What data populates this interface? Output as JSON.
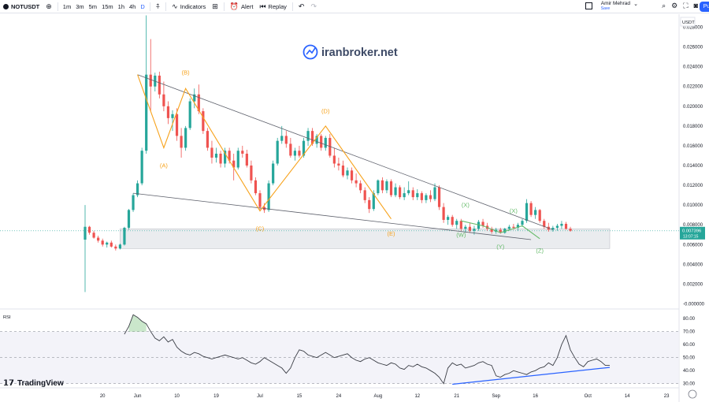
{
  "toolbar": {
    "symbol": "NOTUSDT",
    "timeframes": [
      "1m",
      "3m",
      "5m",
      "15m",
      "1h",
      "4h",
      "D"
    ],
    "active_timeframe": "D",
    "indicators_label": "Indicators",
    "alert_label": "Alert",
    "replay_label": "Replay",
    "user_name": "Amir Mehrad",
    "user_sub": "Save",
    "publish_label": "Pu"
  },
  "watermark": "iranbroker.net",
  "brand": "TradingView",
  "currency": "USDT",
  "price_badge": {
    "value": "0.007396",
    "countdown": "13:07:15"
  },
  "rsi_label": "RSI",
  "chart_data": [
    {
      "type": "candlestick",
      "title": "NOTUSDT",
      "ylabel": "",
      "ylim": [
        -0.0002,
        0.029
      ],
      "y_ticks": [
        "0.028000",
        "0.026000",
        "0.024000",
        "0.022000",
        "0.020000",
        "0.018000",
        "0.016000",
        "0.014000",
        "0.012000",
        "0.010000",
        "0.008000",
        "0.006000",
        "0.004000",
        "0.002000",
        "-0.000000"
      ],
      "y_tick_values": [
        0.028,
        0.026,
        0.024,
        0.022,
        0.02,
        0.018,
        0.016,
        0.014,
        0.012,
        0.01,
        0.008,
        0.006,
        0.004,
        0.002,
        0
      ],
      "x_ticks": [
        "20",
        "Jun",
        "10",
        "19",
        "Jul",
        "15",
        "24",
        "Aug",
        "12",
        "21",
        "Sep",
        "16",
        "Oct",
        "14",
        "23"
      ],
      "x_tick_index": [
        4,
        12,
        21,
        30,
        40,
        49,
        58,
        67,
        76,
        85,
        94,
        103,
        115,
        124,
        133
      ],
      "first_candle_index": 0,
      "ohlc": [
        [
          0.0065,
          0.01,
          0.0012,
          0.0078
        ],
        [
          0.0078,
          0.0079,
          0.007,
          0.0072
        ],
        [
          0.0072,
          0.0074,
          0.0066,
          0.0067
        ],
        [
          0.0067,
          0.0069,
          0.0062,
          0.0064
        ],
        [
          0.0064,
          0.0066,
          0.0058,
          0.006
        ],
        [
          0.006,
          0.0063,
          0.0057,
          0.0062
        ],
        [
          0.0062,
          0.0064,
          0.0057,
          0.0058
        ],
        [
          0.0058,
          0.006,
          0.0054,
          0.0056
        ],
        [
          0.0056,
          0.0061,
          0.0055,
          0.006
        ],
        [
          0.006,
          0.0078,
          0.0059,
          0.0077
        ],
        [
          0.0077,
          0.0096,
          0.0075,
          0.0095
        ],
        [
          0.0095,
          0.0112,
          0.0093,
          0.011
        ],
        [
          0.011,
          0.0125,
          0.0108,
          0.0122
        ],
        [
          0.0122,
          0.0158,
          0.012,
          0.0155
        ],
        [
          0.0155,
          0.0292,
          0.0152,
          0.0232
        ],
        [
          0.0232,
          0.0268,
          0.0195,
          0.022
        ],
        [
          0.022,
          0.0234,
          0.0215,
          0.0231
        ],
        [
          0.0231,
          0.0235,
          0.0208,
          0.0212
        ],
        [
          0.0212,
          0.0225,
          0.0195,
          0.02
        ],
        [
          0.02,
          0.0205,
          0.0182,
          0.0188
        ],
        [
          0.0188,
          0.0196,
          0.0175,
          0.0192
        ],
        [
          0.0192,
          0.0198,
          0.0165,
          0.017
        ],
        [
          0.017,
          0.0178,
          0.0148,
          0.0158
        ],
        [
          0.0158,
          0.018,
          0.0155,
          0.0178
        ],
        [
          0.0178,
          0.0208,
          0.0176,
          0.0205
        ],
        [
          0.0205,
          0.0218,
          0.0198,
          0.0212
        ],
        [
          0.0212,
          0.0222,
          0.0192,
          0.0195
        ],
        [
          0.0195,
          0.0198,
          0.0172,
          0.0175
        ],
        [
          0.0175,
          0.0178,
          0.0155,
          0.0158
        ],
        [
          0.0158,
          0.0165,
          0.0142,
          0.0148
        ],
        [
          0.0148,
          0.0158,
          0.0143,
          0.0152
        ],
        [
          0.0152,
          0.0155,
          0.0138,
          0.0142
        ],
        [
          0.0142,
          0.0158,
          0.0138,
          0.0155
        ],
        [
          0.0155,
          0.0158,
          0.0142,
          0.0145
        ],
        [
          0.0145,
          0.0152,
          0.0125,
          0.0138
        ],
        [
          0.0138,
          0.0158,
          0.0136,
          0.0155
        ],
        [
          0.0155,
          0.016,
          0.0148,
          0.0152
        ],
        [
          0.0152,
          0.0156,
          0.0138,
          0.014
        ],
        [
          0.014,
          0.0145,
          0.0122,
          0.0125
        ],
        [
          0.0125,
          0.0128,
          0.011,
          0.0112
        ],
        [
          0.0112,
          0.0115,
          0.0095,
          0.0098
        ],
        [
          0.0098,
          0.0102,
          0.0092,
          0.0095
        ],
        [
          0.0095,
          0.0125,
          0.0093,
          0.0122
        ],
        [
          0.0122,
          0.0145,
          0.012,
          0.0142
        ],
        [
          0.0142,
          0.0168,
          0.014,
          0.0165
        ],
        [
          0.0165,
          0.018,
          0.0162,
          0.017
        ],
        [
          0.017,
          0.0175,
          0.0158,
          0.0162
        ],
        [
          0.0162,
          0.0168,
          0.0148,
          0.015
        ],
        [
          0.015,
          0.0158,
          0.0145,
          0.0155
        ],
        [
          0.0155,
          0.016,
          0.0148,
          0.015
        ],
        [
          0.015,
          0.0168,
          0.0148,
          0.0165
        ],
        [
          0.0165,
          0.0178,
          0.016,
          0.0175
        ],
        [
          0.0175,
          0.0178,
          0.016,
          0.0162
        ],
        [
          0.0162,
          0.0172,
          0.0158,
          0.017
        ],
        [
          0.017,
          0.0172,
          0.0155,
          0.0158
        ],
        [
          0.0158,
          0.017,
          0.0155,
          0.0168
        ],
        [
          0.0168,
          0.0172,
          0.0148,
          0.015
        ],
        [
          0.015,
          0.0158,
          0.0138,
          0.0142
        ],
        [
          0.0142,
          0.0148,
          0.0135,
          0.014
        ],
        [
          0.014,
          0.0145,
          0.0128,
          0.013
        ],
        [
          0.013,
          0.0138,
          0.0126,
          0.0135
        ],
        [
          0.0135,
          0.0138,
          0.0122,
          0.0125
        ],
        [
          0.0125,
          0.0132,
          0.0118,
          0.0122
        ],
        [
          0.0122,
          0.0125,
          0.0112,
          0.0115
        ],
        [
          0.0115,
          0.0118,
          0.0102,
          0.0105
        ],
        [
          0.0105,
          0.0108,
          0.0092,
          0.0096
        ],
        [
          0.0096,
          0.0115,
          0.0094,
          0.0112
        ],
        [
          0.0112,
          0.0126,
          0.011,
          0.0125
        ],
        [
          0.0125,
          0.0128,
          0.0112,
          0.0115
        ],
        [
          0.0115,
          0.0126,
          0.0112,
          0.0124
        ],
        [
          0.0124,
          0.0126,
          0.0108,
          0.011
        ],
        [
          0.011,
          0.0122,
          0.0108,
          0.0118
        ],
        [
          0.0118,
          0.012,
          0.0106,
          0.0108
        ],
        [
          0.0108,
          0.0118,
          0.0105,
          0.0112
        ],
        [
          0.0112,
          0.0124,
          0.011,
          0.0115
        ],
        [
          0.0115,
          0.0118,
          0.0105,
          0.0108
        ],
        [
          0.0108,
          0.0116,
          0.0105,
          0.0112
        ],
        [
          0.0112,
          0.0114,
          0.0102,
          0.0105
        ],
        [
          0.0105,
          0.0112,
          0.0102,
          0.011
        ],
        [
          0.011,
          0.0115,
          0.0103,
          0.0106
        ],
        [
          0.0106,
          0.0122,
          0.0104,
          0.0118
        ],
        [
          0.0118,
          0.012,
          0.0095,
          0.0098
        ],
        [
          0.0098,
          0.0102,
          0.0082,
          0.0085
        ],
        [
          0.0085,
          0.009,
          0.008,
          0.0088
        ],
        [
          0.0088,
          0.009,
          0.0078,
          0.008
        ],
        [
          0.008,
          0.0086,
          0.0076,
          0.0084
        ],
        [
          0.0084,
          0.0086,
          0.0074,
          0.0076
        ],
        [
          0.0076,
          0.008,
          0.0072,
          0.0078
        ],
        [
          0.0078,
          0.0082,
          0.0072,
          0.0074
        ],
        [
          0.0074,
          0.0079,
          0.007,
          0.0076
        ],
        [
          0.0076,
          0.0085,
          0.0074,
          0.0083
        ],
        [
          0.0083,
          0.0086,
          0.0077,
          0.0079
        ],
        [
          0.0079,
          0.0082,
          0.0074,
          0.0076
        ],
        [
          0.0076,
          0.0078,
          0.0071,
          0.0073
        ],
        [
          0.0073,
          0.0077,
          0.0071,
          0.0075
        ],
        [
          0.0075,
          0.0077,
          0.0071,
          0.0072
        ],
        [
          0.0072,
          0.0077,
          0.0071,
          0.0076
        ],
        [
          0.0076,
          0.008,
          0.0074,
          0.0078
        ],
        [
          0.0078,
          0.0081,
          0.0075,
          0.0077
        ],
        [
          0.0077,
          0.0082,
          0.0074,
          0.008
        ],
        [
          0.008,
          0.0086,
          0.0078,
          0.0084
        ],
        [
          0.0084,
          0.0106,
          0.0082,
          0.0102
        ],
        [
          0.0102,
          0.0104,
          0.0088,
          0.009
        ],
        [
          0.009,
          0.0098,
          0.0086,
          0.0095
        ],
        [
          0.0095,
          0.0096,
          0.0082,
          0.0084
        ],
        [
          0.0084,
          0.0086,
          0.0076,
          0.0078
        ],
        [
          0.0078,
          0.0082,
          0.0073,
          0.0075
        ],
        [
          0.0075,
          0.0079,
          0.0073,
          0.0077
        ],
        [
          0.0077,
          0.0081,
          0.0074,
          0.0079
        ],
        [
          0.0079,
          0.0084,
          0.0076,
          0.0081
        ],
        [
          0.0081,
          0.0083,
          0.0075,
          0.0076
        ],
        [
          0.0076,
          0.0078,
          0.0073,
          0.0074
        ]
      ],
      "colors": {
        "up": "#26a69a",
        "down": "#ef5350",
        "wave": "#f7a21b",
        "wave_alt": "#66bb6a",
        "trendline": "#5d606b",
        "rsi": "#3a3d45",
        "rsi_trend": "#2962ff"
      },
      "trendlines": [
        {
          "from": [
            12,
            0.0232
          ],
          "to": [
            107,
            0.0075
          ]
        },
        {
          "from": [
            11,
            0.0112
          ],
          "to": [
            102,
            0.0065
          ]
        }
      ],
      "waves": [
        {
          "points": [
            [
              12,
              0.0232
            ],
            [
              18,
              0.0158
            ],
            [
              23,
              0.0218
            ],
            [
              40,
              0.0094
            ],
            [
              55,
              0.018
            ],
            [
              70,
              0.0086
            ]
          ],
          "color": "#f7a21b"
        },
        {
          "points": [
            [
              86,
              0.0084
            ],
            [
              91,
              0.0079
            ],
            [
              95,
              0.0072
            ],
            [
              100,
              0.0079
            ],
            [
              104,
              0.0066
            ]
          ],
          "color": "#66bb6a"
        }
      ],
      "wave_labels": [
        {
          "text": "(A)",
          "i": 18,
          "y": 0.0138,
          "color": "#f7a21b"
        },
        {
          "text": "(B)",
          "i": 23,
          "y": 0.0232,
          "color": "#f7a21b"
        },
        {
          "text": "(C)",
          "i": 40,
          "y": 0.0074,
          "color": "#f7a21b"
        },
        {
          "text": "(D)",
          "i": 55,
          "y": 0.0193,
          "color": "#f7a21b"
        },
        {
          "text": "(E)",
          "i": 70,
          "y": 0.0069,
          "color": "#f7a21b"
        },
        {
          "text": "(W)",
          "i": 86,
          "y": 0.0068,
          "color": "#66bb6a"
        },
        {
          "text": "(X)",
          "i": 87,
          "y": 0.0098,
          "color": "#66bb6a"
        },
        {
          "text": "(Y)",
          "i": 95,
          "y": 0.0056,
          "color": "#66bb6a"
        },
        {
          "text": "(X)",
          "i": 98,
          "y": 0.0092,
          "color": "#66bb6a"
        },
        {
          "text": "(Z)",
          "i": 104,
          "y": 0.0052,
          "color": "#66bb6a"
        }
      ],
      "zone": {
        "from_index": 8,
        "to_index": 120,
        "y_top": 0.0076,
        "y_bottom": 0.0056
      },
      "last_price": 0.007396
    },
    {
      "type": "line",
      "title": "RSI",
      "ylim": [
        28,
        85
      ],
      "y_ticks": [
        "80.00",
        "70.00",
        "60.00",
        "50.00",
        "40.00",
        "30.00"
      ],
      "y_tick_values": [
        80,
        70,
        60,
        50,
        40,
        30
      ],
      "levels": [
        70,
        50,
        30
      ],
      "values": [
        68,
        74,
        83,
        81,
        78,
        76,
        70,
        65,
        63,
        66,
        62,
        64,
        58,
        55,
        53,
        52,
        54,
        53,
        51,
        50,
        49,
        50,
        51,
        52,
        51,
        50,
        49,
        50,
        48,
        46,
        45,
        47,
        50,
        48,
        46,
        44,
        42,
        38,
        42,
        50,
        56,
        55,
        52,
        51,
        50,
        52,
        54,
        52,
        50,
        51,
        52,
        53,
        50,
        48,
        47,
        49,
        50,
        48,
        46,
        45,
        44,
        46,
        45,
        42,
        41,
        44,
        43,
        45,
        43,
        42,
        40,
        38,
        35,
        30,
        42,
        46,
        44,
        45,
        42,
        43,
        44,
        46,
        47,
        45,
        44,
        36,
        35,
        37,
        38,
        40,
        39,
        38,
        37,
        39,
        40,
        42,
        43,
        46,
        44,
        50,
        60,
        67,
        56,
        50,
        45,
        43,
        47,
        48,
        49,
        47,
        44,
        44
      ],
      "rsi_start_index": 9,
      "rsi_trend": {
        "from": [
          84,
          29.5
        ],
        "to": [
          120,
          42.5
        ]
      }
    }
  ]
}
